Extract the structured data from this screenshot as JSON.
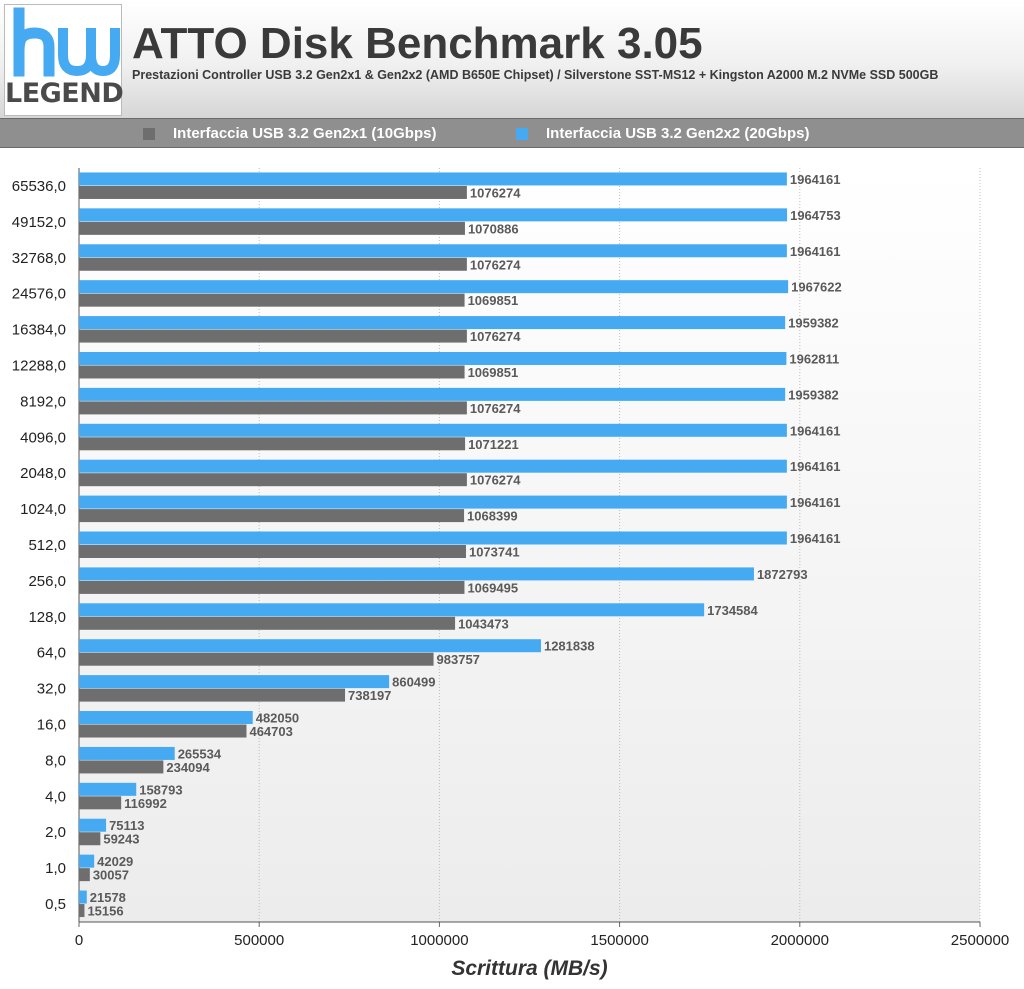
{
  "header": {
    "logo_text": "LEGEND",
    "title": "ATTO Disk Benchmark 3.05",
    "subtitle": "Prestazioni Controller USB 3.2 Gen2x1 & Gen2x2 (AMD B650E Chipset) / Silverstone SST-MS12 + Kingston A2000 M.2 NVMe SSD 500GB"
  },
  "legend": {
    "items": [
      {
        "label": "Interfaccia USB 3.2 Gen2x1 (10Gbps)",
        "color": "#6e6e6e"
      },
      {
        "label": "Interfaccia USB 3.2 Gen2x2 (20Gbps)",
        "color": "#45aaf2"
      }
    ]
  },
  "chart_data": {
    "type": "bar",
    "orientation": "horizontal",
    "xlabel": "Scrittura (MB/s)",
    "ylabel": "",
    "xlim": [
      0,
      2500000
    ],
    "xticks": [
      "0",
      "500000",
      "1000000",
      "1500000",
      "2000000",
      "2500000"
    ],
    "grid": "vertical dotted",
    "legend_position": "top",
    "categories": [
      "65536,0",
      "49152,0",
      "32768,0",
      "24576,0",
      "16384,0",
      "12288,0",
      "8192,0",
      "4096,0",
      "2048,0",
      "1024,0",
      "512,0",
      "256,0",
      "128,0",
      "64,0",
      "32,0",
      "16,0",
      "8,0",
      "4,0",
      "2,0",
      "1,0",
      "0,5"
    ],
    "series": [
      {
        "name": "Interfaccia USB 3.2 Gen2x2 (20Gbps)",
        "color": "#45aaf2",
        "values": [
          1964161,
          1964753,
          1964161,
          1967622,
          1959382,
          1962811,
          1959382,
          1964161,
          1964161,
          1964161,
          1964161,
          1872793,
          1734584,
          1281838,
          860499,
          482050,
          265534,
          158793,
          75113,
          42029,
          21578
        ]
      },
      {
        "name": "Interfaccia USB 3.2 Gen2x1 (10Gbps)",
        "color": "#6e6e6e",
        "values": [
          1076274,
          1070886,
          1076274,
          1069851,
          1076274,
          1069851,
          1076274,
          1071221,
          1076274,
          1068399,
          1073741,
          1069495,
          1043473,
          983757,
          738197,
          464703,
          234094,
          116992,
          59243,
          30057,
          15156
        ]
      }
    ]
  }
}
